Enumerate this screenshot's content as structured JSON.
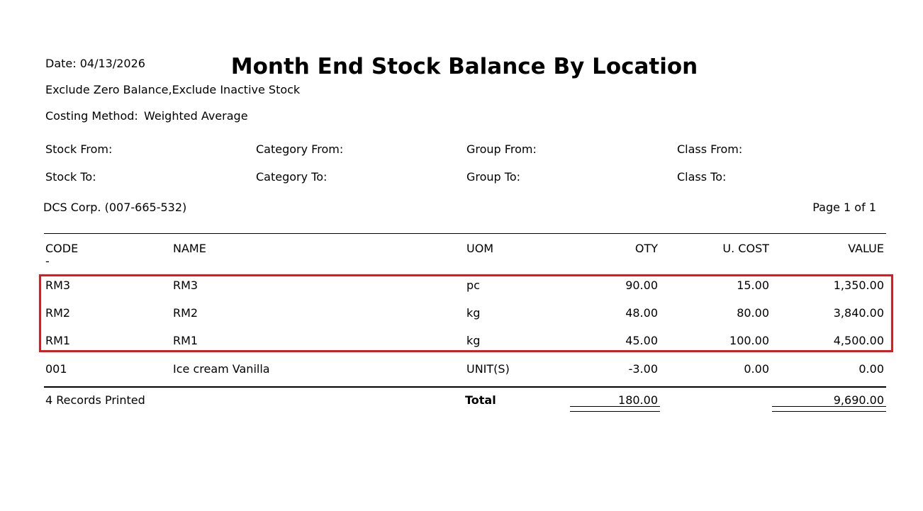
{
  "report": {
    "date_label": "Date:",
    "date_value": "04/13/2026",
    "title": "Month End Stock Balance By Location",
    "filter_text": "Exclude Zero Balance,Exclude Inactive Stock",
    "costing_label": "Costing Method:",
    "costing_value": "Weighted Average",
    "criteria": {
      "stock_from": "Stock From:",
      "stock_to": "Stock To:",
      "category_from": "Category From:",
      "category_to": "Category To:",
      "group_from": "Group From:",
      "group_to": "Group To:",
      "class_from": "Class From:",
      "class_to": "Class To:"
    },
    "company": "DCS Corp. (007-665-532)",
    "page_info": "Page 1 of 1"
  },
  "table": {
    "headers": {
      "code": "CODE",
      "name": "NAME",
      "uom": "UOM",
      "qty": "QTY",
      "ucost": "U. COST",
      "value": "VALUE"
    },
    "header_dash": "-",
    "rows": [
      {
        "code": "RM3",
        "name": "RM3",
        "uom": "pc",
        "qty": "90.00",
        "ucost": "15.00",
        "value": "1,350.00"
      },
      {
        "code": "RM2",
        "name": "RM2",
        "uom": "kg",
        "qty": "48.00",
        "ucost": "80.00",
        "value": "3,840.00"
      },
      {
        "code": "RM1",
        "name": "RM1",
        "uom": "kg",
        "qty": "45.00",
        "ucost": "100.00",
        "value": "4,500.00"
      },
      {
        "code": "001",
        "name": "Ice cream Vanilla",
        "uom": "UNIT(S)",
        "qty": "-3.00",
        "ucost": "0.00",
        "value": "0.00"
      }
    ],
    "footer": {
      "records": "4 Records Printed",
      "total_label": "Total",
      "total_qty": "180.00",
      "total_value": "9,690.00"
    }
  },
  "colors": {
    "highlight": "#e0191f"
  }
}
